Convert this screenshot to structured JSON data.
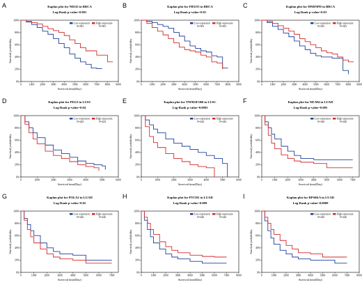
{
  "figure": {
    "panels": [
      {
        "label": "A",
        "title": "Kaplan plot for NR1I2 in BRCA",
        "subtitle": "Log-Rank p-value=0.001"
      },
      {
        "label": "B",
        "title": "Kaplan plot for FBXO5 in BRCA",
        "subtitle": "Log-Rank p-value=0.01"
      },
      {
        "label": "C",
        "title": "Kaplan plot for HNRNPD in BRCA",
        "subtitle": "Log-Rank p-value=0.03"
      },
      {
        "label": "D",
        "title": "Kaplan plot for PEG3 in LUSC",
        "subtitle": "Log-Rank p-value=0.04"
      },
      {
        "label": "E",
        "title": "Kaplan plot for TNFRSF10B in LUSC",
        "subtitle": "Log-Rank p-value=0.0003"
      },
      {
        "label": "F",
        "title": "Kaplan plot for MCM4 in LUAD",
        "subtitle": "Log-Rank p-value=0.005"
      },
      {
        "label": "G",
        "title": "Kaplan plot for POLA2 in LUAD",
        "subtitle": "Log-Rank p-value=0.02"
      },
      {
        "label": "H",
        "title": "Kaplan plot for PTCH1 in LUAD",
        "subtitle": "Log-Rank p-value=0.009"
      },
      {
        "label": "I",
        "title": "Kaplan plot for RPS6KA in LUAD",
        "subtitle": "Log-Rank p-value=0.0009"
      }
    ]
  },
  "colors": {
    "low": "#1f3f99",
    "high": "#d12a2a",
    "axis": "#000000"
  },
  "chart_data": [
    {
      "type": "line",
      "title": "Kaplan plot for NR1I2 in BRCA",
      "xlabel": "Survival time(Day)",
      "ylabel": "Survival probability",
      "xlim": [
        0,
        9000
      ],
      "ylim": [
        0,
        1
      ],
      "xticks": [
        0,
        1000,
        2000,
        3000,
        4000,
        5000,
        6000,
        7000,
        8000,
        9000
      ],
      "yticks": [
        "0%",
        "20%",
        "40%",
        "60%",
        "80%",
        "100%"
      ],
      "series": [
        {
          "name": "Low expression N=503",
          "color": "low",
          "x": [
            0,
            500,
            1000,
            1500,
            2000,
            2500,
            3000,
            3500,
            4000,
            4500,
            5000,
            5500,
            6000,
            6500,
            7000,
            7500
          ],
          "y": [
            1,
            0.97,
            0.93,
            0.88,
            0.82,
            0.77,
            0.7,
            0.62,
            0.55,
            0.45,
            0.38,
            0.32,
            0.28,
            0.22,
            0.21,
            0.21
          ]
        },
        {
          "name": "High expression N=503",
          "color": "high",
          "x": [
            0,
            500,
            1000,
            1500,
            2000,
            2500,
            3000,
            3500,
            4000,
            4500,
            5000,
            5500,
            6000,
            6500,
            7000,
            7500,
            8000,
            8500
          ],
          "y": [
            1,
            0.98,
            0.96,
            0.94,
            0.9,
            0.86,
            0.83,
            0.8,
            0.75,
            0.68,
            0.62,
            0.55,
            0.5,
            0.5,
            0.43,
            0.43,
            0.32,
            0.32
          ]
        }
      ]
    },
    {
      "type": "line",
      "title": "Kaplan plot for FBXO5 in BRCA",
      "xlabel": "Survival time(Day)",
      "ylabel": "Survival probability",
      "xlim": [
        0,
        9000
      ],
      "ylim": [
        0,
        1
      ],
      "xticks": [
        0,
        1000,
        2000,
        3000,
        4000,
        5000,
        6000,
        7000,
        8000,
        9000
      ],
      "yticks": [
        "0%",
        "20%",
        "40%",
        "60%",
        "80%",
        "100%"
      ],
      "series": [
        {
          "name": "Low expression N=503",
          "color": "low",
          "x": [
            0,
            500,
            1000,
            1500,
            2000,
            2500,
            3000,
            3500,
            4000,
            4500,
            5000,
            5500,
            6000,
            6500,
            7000,
            7500,
            8000
          ],
          "y": [
            1,
            0.98,
            0.96,
            0.93,
            0.9,
            0.87,
            0.8,
            0.74,
            0.66,
            0.58,
            0.54,
            0.5,
            0.48,
            0.42,
            0.4,
            0.22,
            0.22
          ]
        },
        {
          "name": "High expression N=503",
          "color": "high",
          "x": [
            0,
            500,
            1000,
            1500,
            2000,
            2500,
            3000,
            3500,
            4000,
            4500,
            5000,
            5500,
            6000,
            6500,
            7000,
            7500
          ],
          "y": [
            1,
            0.95,
            0.88,
            0.82,
            0.76,
            0.7,
            0.63,
            0.56,
            0.52,
            0.5,
            0.48,
            0.43,
            0.4,
            0.32,
            0.3,
            0.2
          ]
        }
      ]
    },
    {
      "type": "line",
      "title": "Kaplan plot for HNRNPD in BRCA",
      "xlabel": "Survival time(Day)",
      "ylabel": "Survival probability",
      "xlim": [
        0,
        9000
      ],
      "ylim": [
        0,
        1
      ],
      "xticks": [
        0,
        1000,
        2000,
        3000,
        4000,
        5000,
        6000,
        7000,
        8000,
        9000
      ],
      "yticks": [
        "0%",
        "20%",
        "40%",
        "60%",
        "80%",
        "100%"
      ],
      "series": [
        {
          "name": "Low expression N=503",
          "color": "low",
          "x": [
            0,
            500,
            1000,
            1500,
            2000,
            2500,
            3000,
            3500,
            4000,
            4500,
            5000,
            5500,
            6000,
            6500,
            7000,
            7500,
            8000
          ],
          "y": [
            1,
            0.96,
            0.9,
            0.85,
            0.79,
            0.73,
            0.66,
            0.58,
            0.52,
            0.46,
            0.42,
            0.4,
            0.4,
            0.38,
            0.38,
            0.18,
            0.12
          ]
        },
        {
          "name": "High expression N=503",
          "color": "high",
          "x": [
            0,
            500,
            1000,
            1500,
            2000,
            2500,
            3000,
            3500,
            4000,
            4500,
            5000,
            5500,
            6000,
            6500,
            7000,
            7500,
            8000,
            8500
          ],
          "y": [
            1,
            0.98,
            0.95,
            0.91,
            0.87,
            0.82,
            0.77,
            0.7,
            0.65,
            0.6,
            0.55,
            0.5,
            0.47,
            0.45,
            0.4,
            0.35,
            0.32,
            0.32
          ]
        }
      ]
    },
    {
      "type": "line",
      "title": "Kaplan plot for PEG3 in LUSC",
      "xlabel": "Survival time(Day)",
      "ylabel": "Survival probability",
      "xlim": [
        0,
        6000
      ],
      "ylim": [
        0,
        1
      ],
      "xticks": [
        0,
        1000,
        2000,
        3000,
        4000,
        5000,
        6000
      ],
      "yticks": [
        "0%",
        "20%",
        "40%",
        "60%",
        "80%",
        "100%"
      ],
      "series": [
        {
          "name": "Low expression N=244",
          "color": "low",
          "x": [
            0,
            250,
            500,
            750,
            1000,
            1500,
            2000,
            2500,
            3000,
            3500,
            4000,
            4500,
            5000,
            5200
          ],
          "y": [
            1,
            0.9,
            0.8,
            0.72,
            0.64,
            0.52,
            0.44,
            0.38,
            0.32,
            0.26,
            0.22,
            0.2,
            0.18,
            0.12
          ]
        },
        {
          "name": "High expression N=244",
          "color": "high",
          "x": [
            0,
            250,
            500,
            750,
            1000,
            1500,
            2000,
            2500,
            3000,
            3500,
            4000,
            4500,
            4800
          ],
          "y": [
            1,
            0.86,
            0.72,
            0.62,
            0.54,
            0.42,
            0.35,
            0.3,
            0.25,
            0.2,
            0.17,
            0.15,
            0.1
          ]
        }
      ]
    },
    {
      "type": "line",
      "title": "Kaplan plot for TNFRSF10B in LUSC",
      "xlabel": "Survival time(Day)",
      "ylabel": "Survival probability",
      "xlim": [
        0,
        6000
      ],
      "ylim": [
        0,
        1
      ],
      "xticks": [
        0,
        1000,
        2000,
        3000,
        4000,
        5000,
        6000
      ],
      "yticks": [
        "0%",
        "20%",
        "40%",
        "60%",
        "80%",
        "100%"
      ],
      "series": [
        {
          "name": "Low expression N=244",
          "color": "low",
          "x": [
            0,
            250,
            500,
            750,
            1000,
            1500,
            2000,
            2500,
            3000,
            3500,
            4000,
            4500,
            5000,
            5300
          ],
          "y": [
            1,
            0.93,
            0.85,
            0.78,
            0.72,
            0.62,
            0.55,
            0.5,
            0.45,
            0.4,
            0.35,
            0.3,
            0.22,
            0
          ]
        },
        {
          "name": "High expression N=244",
          "color": "high",
          "x": [
            0,
            250,
            500,
            750,
            1000,
            1500,
            2000,
            2500,
            3000,
            3500,
            4000,
            4500
          ],
          "y": [
            1,
            0.82,
            0.66,
            0.56,
            0.48,
            0.38,
            0.3,
            0.25,
            0.2,
            0.17,
            0.15,
            0
          ]
        }
      ]
    },
    {
      "type": "line",
      "title": "Kaplan plot for MCM4 in LUAD",
      "xlabel": "Survival time(Day)",
      "ylabel": "Survival probability",
      "xlim": [
        0,
        7500
      ],
      "ylim": [
        0,
        1
      ],
      "xticks": [
        0,
        1000,
        2000,
        3000,
        4000,
        5000,
        6000,
        7000
      ],
      "yticks": [
        "0%",
        "20%",
        "40%",
        "60%",
        "80%",
        "100%"
      ],
      "series": [
        {
          "name": "Low expression N=246",
          "color": "low",
          "x": [
            0,
            250,
            500,
            750,
            1000,
            1500,
            2000,
            2500,
            3000,
            4000,
            5000,
            6000,
            7000
          ],
          "y": [
            1,
            0.9,
            0.8,
            0.7,
            0.62,
            0.5,
            0.42,
            0.35,
            0.3,
            0.28,
            0.28,
            0.28,
            0.28
          ]
        },
        {
          "name": "High expression N=246",
          "color": "high",
          "x": [
            0,
            250,
            500,
            750,
            1000,
            1500,
            2000,
            2500,
            3000,
            4000,
            5000,
            6000,
            7000
          ],
          "y": [
            1,
            0.85,
            0.68,
            0.55,
            0.46,
            0.36,
            0.3,
            0.26,
            0.24,
            0.22,
            0.15,
            0.15,
            0.15
          ]
        }
      ]
    },
    {
      "type": "line",
      "title": "Kaplan plot for POLA2 in LUAD",
      "xlabel": "Survival time(Day)",
      "ylabel": "Survival probability",
      "xlim": [
        0,
        7500
      ],
      "ylim": [
        0,
        1
      ],
      "xticks": [
        0,
        1000,
        2000,
        3000,
        4000,
        5000,
        6000,
        7000
      ],
      "yticks": [
        "0%",
        "20%",
        "40%",
        "60%",
        "80%",
        "100%"
      ],
      "series": [
        {
          "name": "Low expression N=246",
          "color": "low",
          "x": [
            0,
            250,
            500,
            750,
            1000,
            1500,
            2000,
            2500,
            3000,
            4000,
            5000,
            6000,
            7000
          ],
          "y": [
            1,
            0.88,
            0.78,
            0.68,
            0.6,
            0.48,
            0.4,
            0.34,
            0.3,
            0.28,
            0.2,
            0.2,
            0.2
          ]
        },
        {
          "name": "High expression N=246",
          "color": "high",
          "x": [
            0,
            250,
            500,
            750,
            1000,
            1500,
            2000,
            2500,
            3000,
            4000,
            5000,
            6000,
            7000
          ],
          "y": [
            1,
            0.85,
            0.7,
            0.58,
            0.48,
            0.38,
            0.3,
            0.25,
            0.22,
            0.2,
            0.15,
            0.15,
            0.15
          ]
        }
      ]
    },
    {
      "type": "line",
      "title": "Kaplan plot for PTCH1 in LUAD",
      "xlabel": "Survival time(Day)",
      "ylabel": "Survival probability",
      "xlim": [
        0,
        8000
      ],
      "ylim": [
        0,
        1
      ],
      "xticks": [
        0,
        1000,
        2000,
        3000,
        4000,
        5000,
        6000,
        7000,
        8000
      ],
      "yticks": [
        "0%",
        "20%",
        "40%",
        "60%",
        "80%",
        "100%"
      ],
      "series": [
        {
          "name": "Low expression N=246",
          "color": "low",
          "x": [
            0,
            250,
            500,
            750,
            1000,
            1500,
            2000,
            2500,
            3000,
            4000,
            5000,
            6000,
            7000
          ],
          "y": [
            1,
            0.85,
            0.7,
            0.58,
            0.48,
            0.38,
            0.3,
            0.25,
            0.22,
            0.18,
            0.15,
            0.15,
            0.15
          ]
        },
        {
          "name": "High expression N=246",
          "color": "high",
          "x": [
            0,
            250,
            500,
            750,
            1000,
            1500,
            2000,
            2500,
            3000,
            4000,
            5000,
            6000,
            7000
          ],
          "y": [
            1,
            0.9,
            0.8,
            0.7,
            0.62,
            0.5,
            0.42,
            0.36,
            0.32,
            0.28,
            0.26,
            0.25,
            0.25
          ]
        }
      ]
    },
    {
      "type": "line",
      "title": "Kaplan plot for RPS6KA in LUAD",
      "xlabel": "Survival time(Day)",
      "ylabel": "Survival probability",
      "xlim": [
        0,
        8000
      ],
      "ylim": [
        0,
        1
      ],
      "xticks": [
        0,
        1000,
        2000,
        3000,
        4000,
        5000,
        6000,
        7000,
        8000
      ],
      "yticks": [
        "0%",
        "20%",
        "40%",
        "60%",
        "80%",
        "100%"
      ],
      "series": [
        {
          "name": "Low expression N=246",
          "color": "low",
          "x": [
            0,
            250,
            500,
            750,
            1000,
            1500,
            2000,
            2500,
            3000,
            4000,
            5000,
            6000,
            7000
          ],
          "y": [
            1,
            0.84,
            0.68,
            0.56,
            0.46,
            0.36,
            0.3,
            0.25,
            0.22,
            0.2,
            0.2,
            0.15,
            0.15
          ]
        },
        {
          "name": "High expression N=246",
          "color": "high",
          "x": [
            0,
            250,
            500,
            750,
            1000,
            1500,
            2000,
            2500,
            3000,
            4000,
            5000,
            6000,
            7000
          ],
          "y": [
            1,
            0.9,
            0.8,
            0.7,
            0.62,
            0.52,
            0.44,
            0.38,
            0.32,
            0.3,
            0.25,
            0.25,
            0.25
          ]
        }
      ]
    }
  ]
}
